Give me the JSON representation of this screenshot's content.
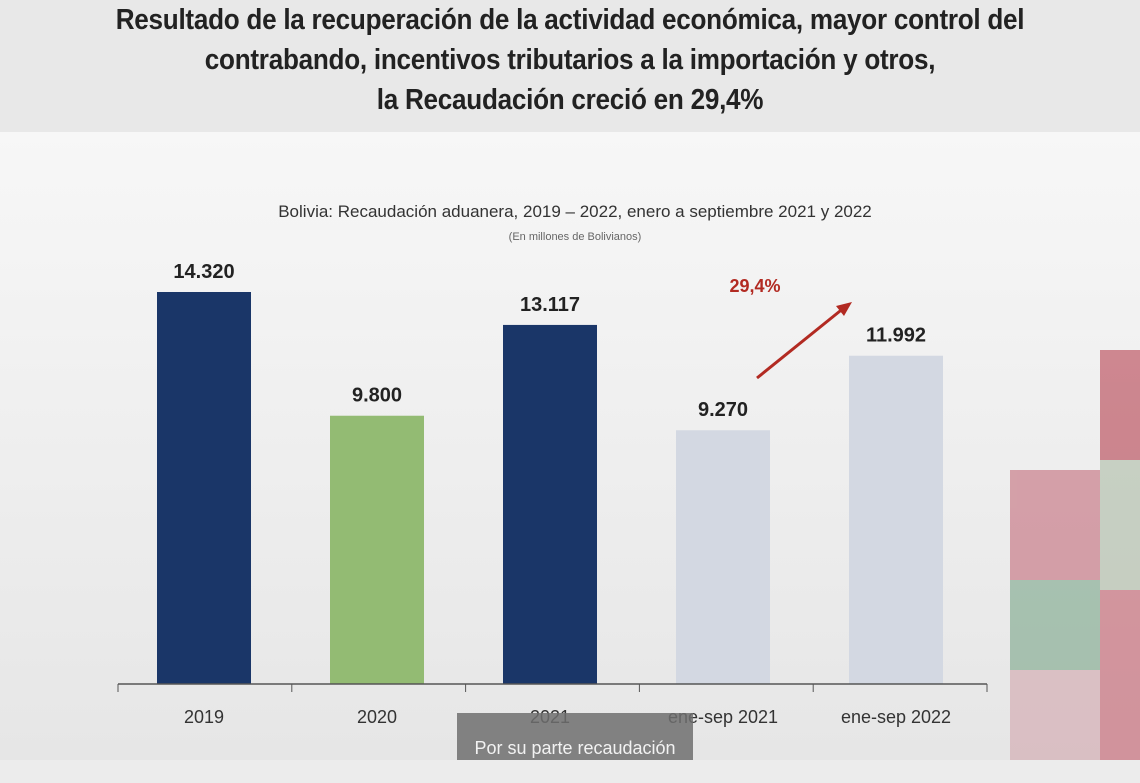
{
  "headline": {
    "lines": [
      "Resultado de la recuperación de la actividad económica, mayor control del",
      "contrabando, incentivos tributarios a la importación y otros,",
      "la Recaudación creció en 29,4%"
    ]
  },
  "chart_data": {
    "type": "bar",
    "title": "Bolivia: Recaudación aduanera, 2019 – 2022, enero a septiembre 2021 y 2022",
    "subtitle": "(En millones de Bolivianos)",
    "categories": [
      "2019",
      "2020",
      "2021",
      "ene-sep 2021",
      "ene-sep 2022"
    ],
    "values": [
      14320,
      9800,
      13117,
      9270,
      11992
    ],
    "value_labels": [
      "14.320",
      "9.800",
      "13.117",
      "9.270",
      "11.992"
    ],
    "colors": [
      "#1a3668",
      "#93bb73",
      "#1a3668",
      "#d3d8e2",
      "#d3d8e2"
    ],
    "annotation": {
      "text": "29,4%",
      "color": "#b22a22",
      "from": "ene-sep 2021",
      "to": "ene-sep 2022"
    },
    "ylim": [
      0,
      14320
    ],
    "grid": false,
    "xlabel": "",
    "ylabel": ""
  },
  "caption": "Por su parte recaudación"
}
